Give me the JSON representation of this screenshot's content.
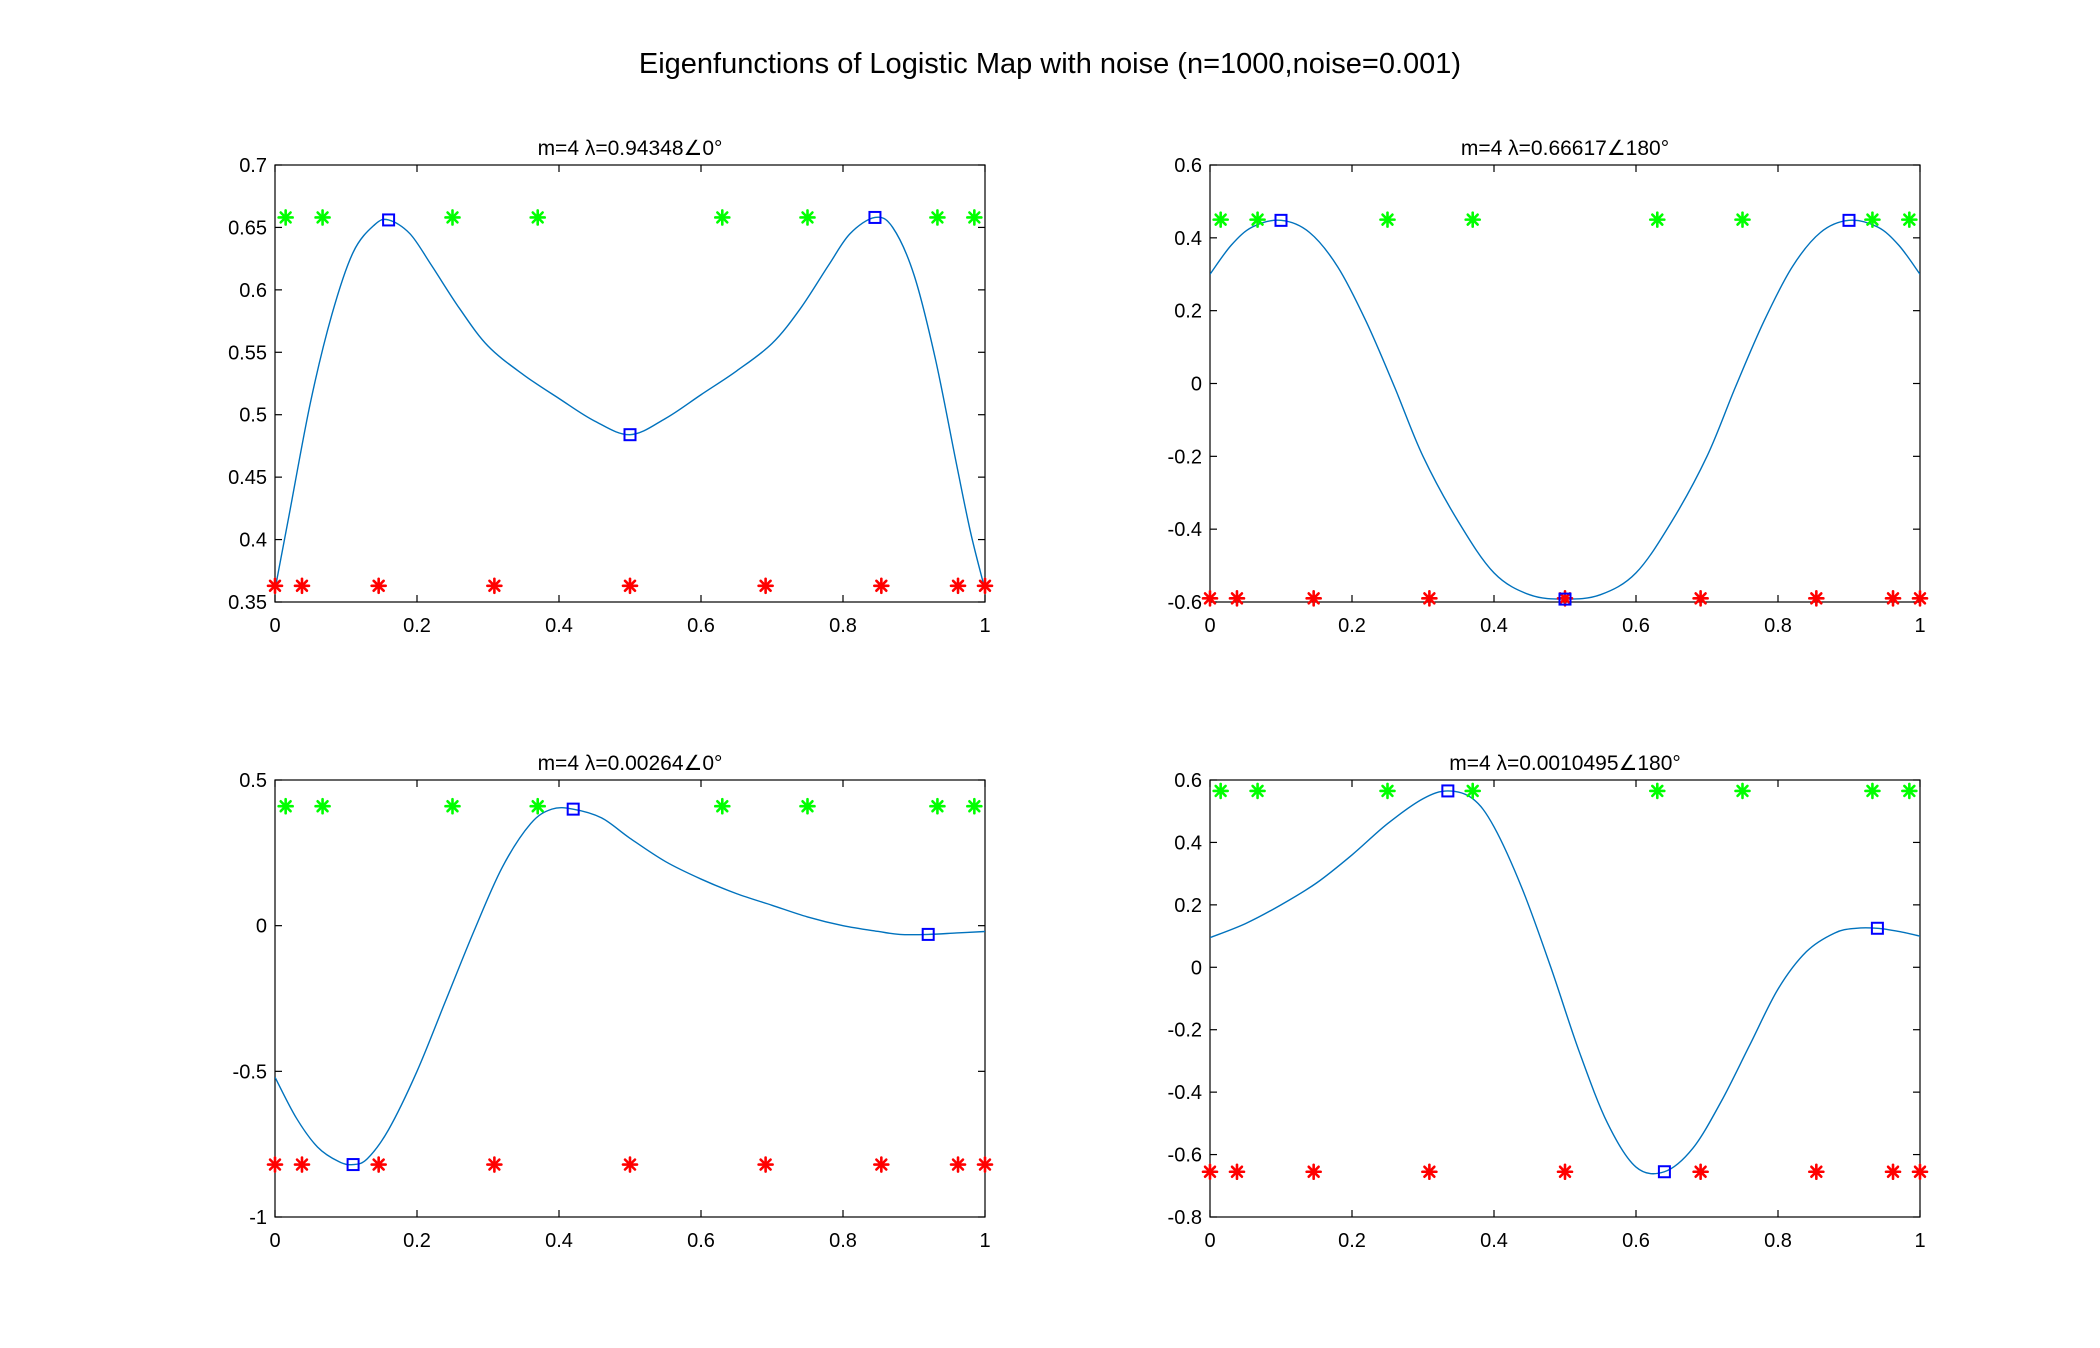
{
  "figure": {
    "title": "Eigenfunctions of Logistic Map with noise (n=1000,noise=0.001)"
  },
  "colors": {
    "curve": "#0072BD",
    "extrema_marker": "#0000FF",
    "upper_star": "#00FF00",
    "lower_star": "#FF0000",
    "axes": "#000000"
  },
  "chart_data": [
    {
      "type": "line",
      "title": "m=4 λ=0.94348∠0°",
      "xlim": [
        0,
        1
      ],
      "ylim": [
        0.35,
        0.7
      ],
      "xticks": [
        0,
        0.2,
        0.4,
        0.6,
        0.8,
        1
      ],
      "xtick_labels": [
        "0",
        "0.2",
        "0.4",
        "0.6",
        "0.8",
        "1"
      ],
      "yticks": [
        0.35,
        0.4,
        0.45,
        0.5,
        0.55,
        0.6,
        0.65,
        0.7
      ],
      "ytick_labels": [
        "0.35",
        "0.4",
        "0.45",
        "0.5",
        "0.55",
        "0.6",
        "0.65",
        "0.7"
      ],
      "curve": {
        "x": [
          0,
          0.02,
          0.05,
          0.08,
          0.11,
          0.14,
          0.16,
          0.19,
          0.22,
          0.26,
          0.3,
          0.35,
          0.4,
          0.45,
          0.5,
          0.55,
          0.6,
          0.65,
          0.7,
          0.74,
          0.78,
          0.81,
          0.845,
          0.87,
          0.9,
          0.93,
          0.96,
          0.98,
          1.0
        ],
        "y": [
          0.36,
          0.42,
          0.51,
          0.58,
          0.63,
          0.652,
          0.656,
          0.645,
          0.62,
          0.585,
          0.555,
          0.532,
          0.513,
          0.495,
          0.484,
          0.497,
          0.516,
          0.535,
          0.557,
          0.585,
          0.62,
          0.645,
          0.658,
          0.65,
          0.612,
          0.545,
          0.46,
          0.405,
          0.36
        ]
      },
      "extrema": {
        "x": [
          0.16,
          0.5,
          0.845
        ],
        "y": [
          0.656,
          0.484,
          0.658
        ]
      },
      "green_stars": {
        "x": [
          0.015,
          0.067,
          0.25,
          0.37,
          0.63,
          0.75,
          0.933,
          0.985
        ],
        "y": 0.658
      },
      "red_stars": {
        "x": [
          0,
          0.038,
          0.146,
          0.309,
          0.5,
          0.691,
          0.854,
          0.962,
          1.0
        ],
        "y": 0.363
      }
    },
    {
      "type": "line",
      "title": "m=4 λ=0.66617∠180°",
      "xlim": [
        0,
        1
      ],
      "ylim": [
        -0.6,
        0.6
      ],
      "xticks": [
        0,
        0.2,
        0.4,
        0.6,
        0.8,
        1
      ],
      "xtick_labels": [
        "0",
        "0.2",
        "0.4",
        "0.6",
        "0.8",
        "1"
      ],
      "yticks": [
        -0.6,
        -0.4,
        -0.2,
        0,
        0.2,
        0.4,
        0.6
      ],
      "ytick_labels": [
        "-0.6",
        "-0.4",
        "-0.2",
        "0",
        "0.2",
        "0.4",
        "0.6"
      ],
      "curve": {
        "x": [
          0,
          0.03,
          0.06,
          0.1,
          0.14,
          0.18,
          0.22,
          0.26,
          0.3,
          0.35,
          0.4,
          0.45,
          0.5,
          0.55,
          0.6,
          0.65,
          0.7,
          0.74,
          0.78,
          0.82,
          0.86,
          0.9,
          0.94,
          0.97,
          1.0
        ],
        "y": [
          0.3,
          0.38,
          0.43,
          0.448,
          0.415,
          0.32,
          0.17,
          -0.01,
          -0.2,
          -0.38,
          -0.52,
          -0.58,
          -0.592,
          -0.58,
          -0.52,
          -0.38,
          -0.2,
          -0.01,
          0.17,
          0.32,
          0.415,
          0.448,
          0.43,
          0.38,
          0.3
        ]
      },
      "extrema": {
        "x": [
          0.1,
          0.5,
          0.9
        ],
        "y": [
          0.448,
          -0.592,
          0.448
        ]
      },
      "green_stars": {
        "x": [
          0.015,
          0.067,
          0.25,
          0.37,
          0.63,
          0.75,
          0.933,
          0.985
        ],
        "y": 0.45
      },
      "red_stars": {
        "x": [
          0,
          0.038,
          0.146,
          0.309,
          0.5,
          0.691,
          0.854,
          0.962,
          1.0
        ],
        "y": -0.59
      }
    },
    {
      "type": "line",
      "title": "m=4 λ=0.00264∠0°",
      "xlim": [
        0,
        1
      ],
      "ylim": [
        -1,
        0.5
      ],
      "xticks": [
        0,
        0.2,
        0.4,
        0.6,
        0.8,
        1
      ],
      "xtick_labels": [
        "0",
        "0.2",
        "0.4",
        "0.6",
        "0.8",
        "1"
      ],
      "yticks": [
        -1,
        -0.5,
        0,
        0.5
      ],
      "ytick_labels": [
        "-1",
        "-0.5",
        "0",
        "0.5"
      ],
      "curve": {
        "x": [
          0,
          0.03,
          0.06,
          0.09,
          0.11,
          0.13,
          0.16,
          0.2,
          0.24,
          0.28,
          0.32,
          0.36,
          0.39,
          0.42,
          0.46,
          0.5,
          0.55,
          0.6,
          0.65,
          0.7,
          0.75,
          0.8,
          0.85,
          0.88,
          0.92,
          0.96,
          1.0
        ],
        "y": [
          -0.52,
          -0.66,
          -0.76,
          -0.81,
          -0.82,
          -0.8,
          -0.7,
          -0.5,
          -0.26,
          -0.02,
          0.2,
          0.35,
          0.4,
          0.4,
          0.37,
          0.3,
          0.22,
          0.16,
          0.11,
          0.07,
          0.03,
          0.0,
          -0.02,
          -0.03,
          -0.03,
          -0.025,
          -0.02
        ]
      },
      "extrema": {
        "x": [
          0.11,
          0.42,
          0.92
        ],
        "y": [
          -0.82,
          0.4,
          -0.03
        ]
      },
      "green_stars": {
        "x": [
          0.015,
          0.067,
          0.25,
          0.37,
          0.63,
          0.75,
          0.933,
          0.985
        ],
        "y": 0.41
      },
      "red_stars": {
        "x": [
          0,
          0.038,
          0.146,
          0.309,
          0.5,
          0.691,
          0.854,
          0.962,
          1.0
        ],
        "y": -0.82
      }
    },
    {
      "type": "line",
      "title": "m=4 λ=0.0010495∠180°",
      "xlim": [
        0,
        1
      ],
      "ylim": [
        -0.8,
        0.6
      ],
      "xticks": [
        0,
        0.2,
        0.4,
        0.6,
        0.8,
        1
      ],
      "xtick_labels": [
        "0",
        "0.2",
        "0.4",
        "0.6",
        "0.8",
        "1"
      ],
      "yticks": [
        -0.8,
        -0.6,
        -0.4,
        -0.2,
        0,
        0.2,
        0.4,
        0.6
      ],
      "ytick_labels": [
        "-0.8",
        "-0.6",
        "-0.4",
        "-0.2",
        "0",
        "0.2",
        "0.4",
        "0.6"
      ],
      "curve": {
        "x": [
          0,
          0.05,
          0.1,
          0.15,
          0.2,
          0.25,
          0.3,
          0.335,
          0.37,
          0.4,
          0.44,
          0.48,
          0.52,
          0.56,
          0.6,
          0.64,
          0.68,
          0.72,
          0.76,
          0.8,
          0.84,
          0.88,
          0.91,
          0.94,
          0.97,
          1.0
        ],
        "y": [
          0.095,
          0.14,
          0.2,
          0.27,
          0.36,
          0.46,
          0.54,
          0.565,
          0.54,
          0.45,
          0.25,
          0.0,
          -0.27,
          -0.5,
          -0.64,
          -0.655,
          -0.58,
          -0.43,
          -0.25,
          -0.07,
          0.05,
          0.11,
          0.125,
          0.125,
          0.115,
          0.1
        ]
      },
      "extrema": {
        "x": [
          0.335,
          0.64,
          0.94
        ],
        "y": [
          0.565,
          -0.655,
          0.125
        ]
      },
      "green_stars": {
        "x": [
          0.015,
          0.067,
          0.25,
          0.37,
          0.63,
          0.75,
          0.933,
          0.985
        ],
        "y": 0.565
      },
      "red_stars": {
        "x": [
          0,
          0.038,
          0.146,
          0.309,
          0.5,
          0.691,
          0.854,
          0.962,
          1.0
        ],
        "y": -0.655
      }
    }
  ]
}
